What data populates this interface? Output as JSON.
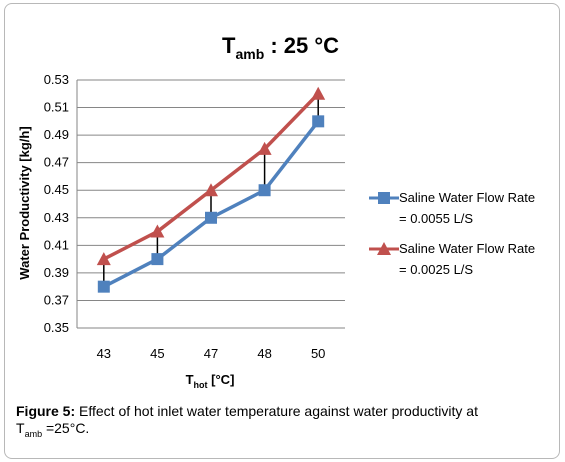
{
  "chart_data": {
    "type": "line",
    "title": {
      "main": "T",
      "sub": "amb",
      "rest": " : 25 °C"
    },
    "xlabel": {
      "main": "T",
      "sub": "hot",
      "rest": " [°C]"
    },
    "ylabel": "Water Productivity [kg/h]",
    "categories": [
      "43",
      "45",
      "47",
      "48",
      "50"
    ],
    "ylim": [
      0.35,
      0.53
    ],
    "yticks": [
      "0.35",
      "0.37",
      "0.39",
      "0.41",
      "0.43",
      "0.45",
      "0.47",
      "0.49",
      "0.51",
      "0.53"
    ],
    "grid": true,
    "legend_position": "right",
    "series": [
      {
        "name_line1": "Saline Water Flow Rate",
        "name_line2": "= 0.0055 L/S",
        "marker": "square",
        "color": "#4f81bd",
        "values": [
          0.38,
          0.4,
          0.43,
          0.45,
          0.5
        ]
      },
      {
        "name_line1": "Saline Water Flow Rate",
        "name_line2": "= 0.0025 L/S",
        "marker": "triangle",
        "color": "#c0504d",
        "values": [
          0.4,
          0.42,
          0.45,
          0.48,
          0.52
        ]
      }
    ]
  },
  "caption": {
    "label": "Figure 5:",
    "text": " Effect of hot inlet water temperature against water productivity at",
    "line2_main": "T",
    "line2_sub": "amb",
    "line2_rest": " =25°C."
  }
}
